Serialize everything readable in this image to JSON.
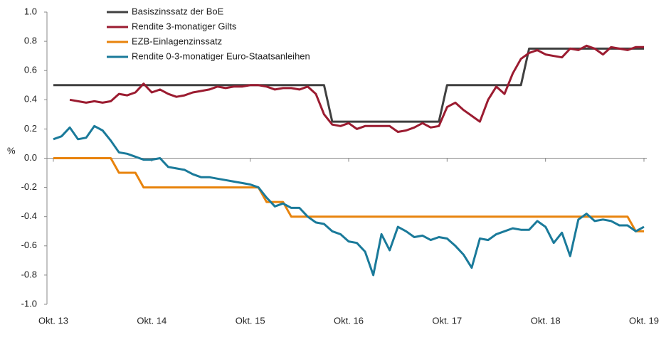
{
  "chart_data": {
    "type": "line",
    "y_label": "%",
    "categories": [
      "Okt. 13",
      null,
      null,
      null,
      null,
      null,
      null,
      null,
      null,
      null,
      null,
      null,
      "Okt. 14",
      null,
      null,
      null,
      null,
      null,
      null,
      null,
      null,
      null,
      null,
      null,
      "Okt. 15",
      null,
      null,
      null,
      null,
      null,
      null,
      null,
      null,
      null,
      null,
      null,
      "Okt. 16",
      null,
      null,
      null,
      null,
      null,
      null,
      null,
      null,
      null,
      null,
      null,
      "Okt. 17",
      null,
      null,
      null,
      null,
      null,
      null,
      null,
      null,
      null,
      null,
      null,
      "Okt. 18",
      null,
      null,
      null,
      null,
      null,
      null,
      null,
      null,
      null,
      null,
      null,
      "Okt. 19"
    ],
    "ylim": [
      -1,
      1
    ],
    "yticks": [
      {
        "value": 1,
        "label": "1.0"
      },
      0.8,
      0.6,
      0.4,
      0.2,
      {
        "value": 0,
        "label": "0.0"
      },
      -0.2,
      -0.4,
      -0.6,
      -0.8,
      {
        "value": -1,
        "label": "-1.0"
      }
    ],
    "series": [
      {
        "name": "Basiszinssatz der BoE",
        "color": "#404040",
        "values": [
          0.5,
          0.5,
          0.5,
          0.5,
          0.5,
          0.5,
          0.5,
          0.5,
          0.5,
          0.5,
          0.5,
          0.5,
          0.5,
          0.5,
          0.5,
          0.5,
          0.5,
          0.5,
          0.5,
          0.5,
          0.5,
          0.5,
          0.5,
          0.5,
          0.5,
          0.5,
          0.5,
          0.5,
          0.5,
          0.5,
          0.5,
          0.5,
          0.5,
          0.5,
          0.25,
          0.25,
          0.25,
          0.25,
          0.25,
          0.25,
          0.25,
          0.25,
          0.25,
          0.25,
          0.25,
          0.25,
          0.25,
          0.25,
          0.5,
          0.5,
          0.5,
          0.5,
          0.5,
          0.5,
          0.5,
          0.5,
          0.5,
          0.5,
          0.75,
          0.75,
          0.75,
          0.75,
          0.75,
          0.75,
          0.75,
          0.75,
          0.75,
          0.75,
          0.75,
          0.75,
          0.75,
          0.75,
          0.75
        ]
      },
      {
        "name": "Rendite 3-monatiger Gilts",
        "color": "#9b1b30",
        "values": [
          null,
          null,
          0.4,
          0.39,
          0.38,
          0.39,
          0.38,
          0.39,
          0.44,
          0.43,
          0.45,
          0.51,
          0.45,
          0.47,
          0.44,
          0.42,
          0.43,
          0.45,
          0.46,
          0.47,
          0.49,
          0.48,
          0.49,
          0.49,
          0.5,
          0.5,
          0.49,
          0.47,
          0.48,
          0.48,
          0.47,
          0.49,
          0.44,
          0.3,
          0.23,
          0.22,
          0.24,
          0.2,
          0.22,
          0.22,
          0.22,
          0.22,
          0.18,
          0.19,
          0.21,
          0.24,
          0.21,
          0.22,
          0.35,
          0.38,
          0.33,
          0.29,
          0.25,
          0.4,
          0.49,
          0.44,
          0.58,
          0.68,
          0.72,
          0.74,
          0.71,
          0.7,
          0.69,
          0.75,
          0.74,
          0.77,
          0.75,
          0.71,
          0.76,
          0.75,
          0.74,
          0.76,
          0.76
        ]
      },
      {
        "name": "EZB-Einlagenzinssatz",
        "color": "#e8830c",
        "values": [
          0,
          0,
          0,
          0,
          0,
          0,
          0,
          0,
          -0.1,
          -0.1,
          -0.1,
          -0.2,
          -0.2,
          -0.2,
          -0.2,
          -0.2,
          -0.2,
          -0.2,
          -0.2,
          -0.2,
          -0.2,
          -0.2,
          -0.2,
          -0.2,
          -0.2,
          -0.2,
          -0.3,
          -0.3,
          -0.3,
          -0.4,
          -0.4,
          -0.4,
          -0.4,
          -0.4,
          -0.4,
          -0.4,
          -0.4,
          -0.4,
          -0.4,
          -0.4,
          -0.4,
          -0.4,
          -0.4,
          -0.4,
          -0.4,
          -0.4,
          -0.4,
          -0.4,
          -0.4,
          -0.4,
          -0.4,
          -0.4,
          -0.4,
          -0.4,
          -0.4,
          -0.4,
          -0.4,
          -0.4,
          -0.4,
          -0.4,
          -0.4,
          -0.4,
          -0.4,
          -0.4,
          -0.4,
          -0.4,
          -0.4,
          -0.4,
          -0.4,
          -0.4,
          -0.4,
          -0.5,
          -0.5
        ]
      },
      {
        "name": "Rendite 0-3-monatiger Euro-Staatsanleihen",
        "color": "#1a7a9a",
        "values": [
          0.13,
          0.15,
          0.21,
          0.13,
          0.14,
          0.22,
          0.19,
          0.12,
          0.04,
          0.03,
          0.01,
          -0.01,
          -0.01,
          0.0,
          -0.06,
          -0.07,
          -0.08,
          -0.11,
          -0.13,
          -0.13,
          -0.14,
          -0.15,
          -0.16,
          -0.17,
          -0.18,
          -0.2,
          -0.27,
          -0.33,
          -0.31,
          -0.34,
          -0.34,
          -0.4,
          -0.44,
          -0.45,
          -0.5,
          -0.52,
          -0.57,
          -0.58,
          -0.64,
          -0.8,
          -0.52,
          -0.63,
          -0.47,
          -0.5,
          -0.54,
          -0.53,
          -0.56,
          -0.54,
          -0.55,
          -0.6,
          -0.66,
          -0.75,
          -0.55,
          -0.56,
          -0.52,
          -0.5,
          -0.48,
          -0.49,
          -0.49,
          -0.43,
          -0.47,
          -0.58,
          -0.51,
          -0.67,
          -0.42,
          -0.38,
          -0.43,
          -0.42,
          -0.43,
          -0.46,
          -0.46,
          -0.5,
          -0.47
        ]
      }
    ]
  }
}
